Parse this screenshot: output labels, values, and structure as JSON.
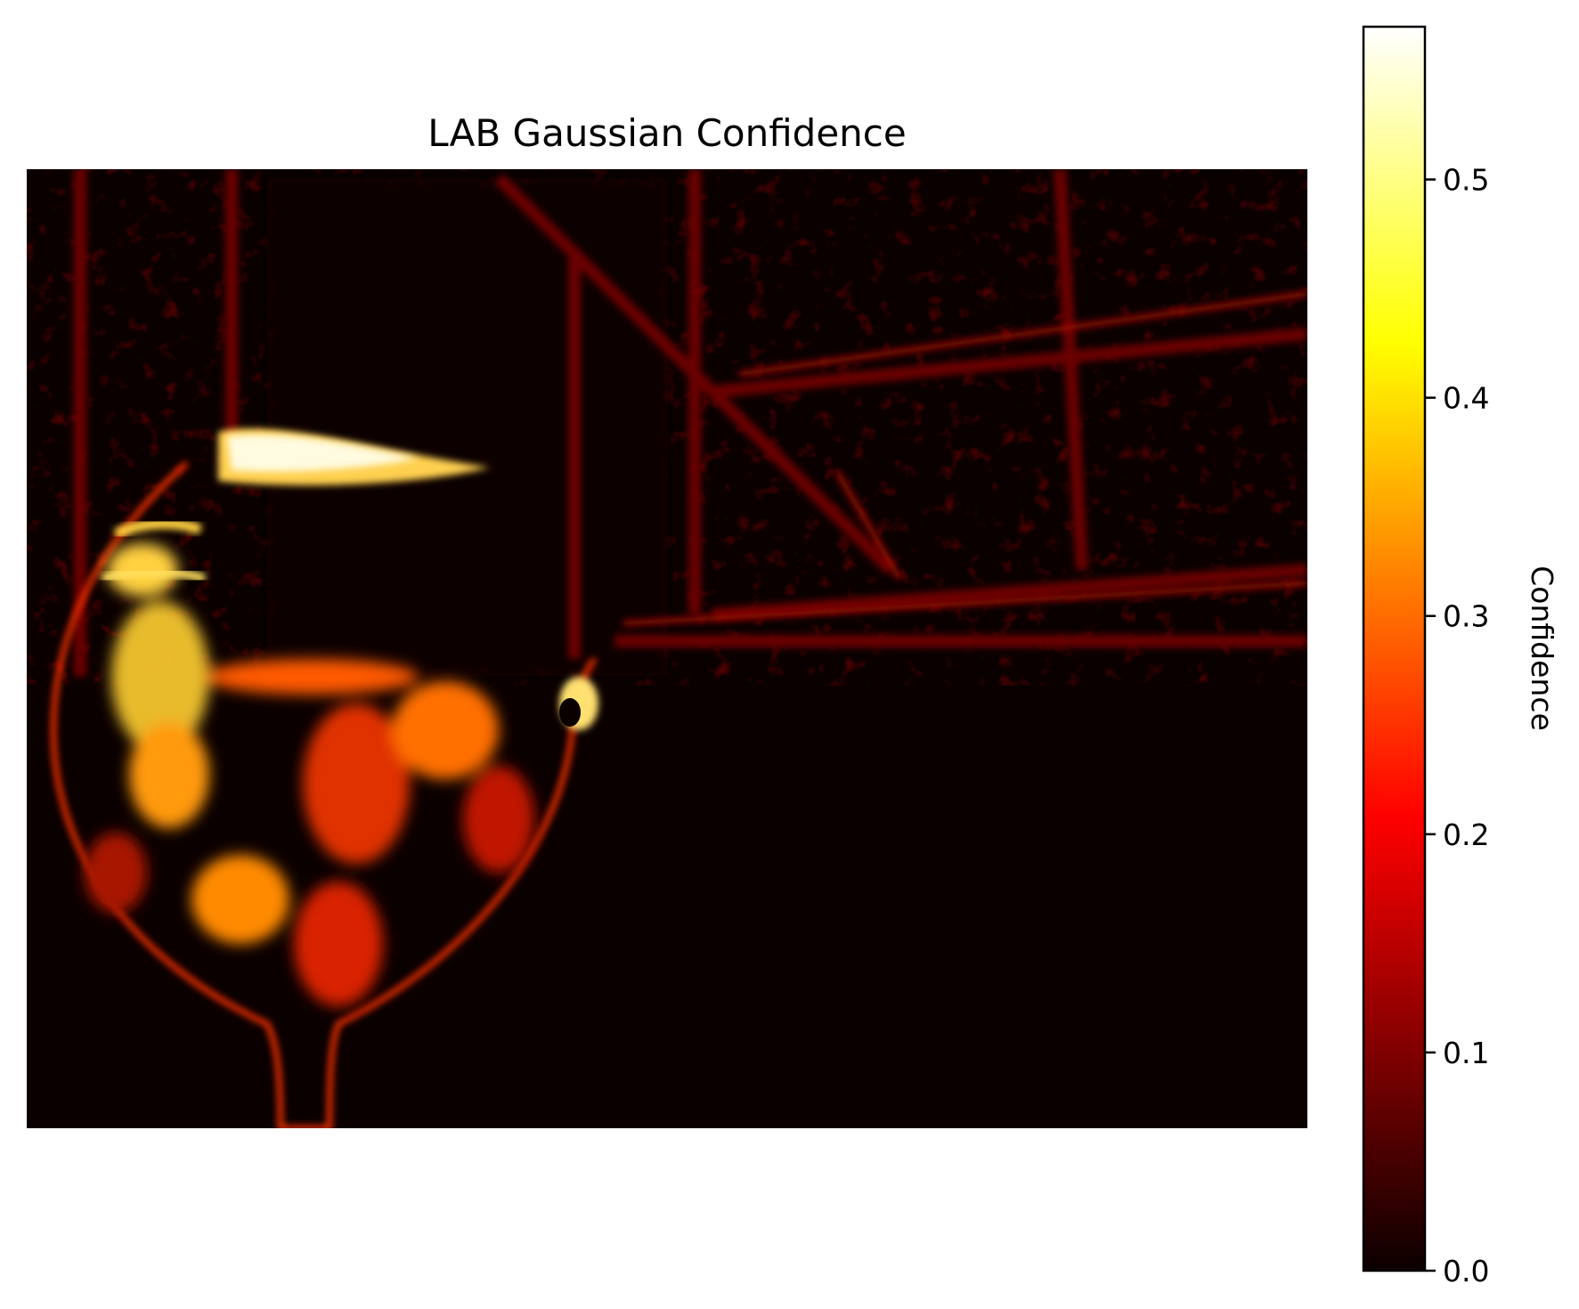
{
  "chart_data": {
    "type": "heatmap",
    "title": "LAB Gaussian Confidence",
    "colormap": "hot",
    "axes_visible": false,
    "colorbar": {
      "label": "Confidence",
      "range": [
        0.0,
        0.57
      ],
      "ticks": [
        0.0,
        0.1,
        0.2,
        0.3,
        0.4,
        0.5
      ],
      "tick_labels": [
        "0.0",
        "0.1",
        "0.2",
        "0.3",
        "0.4",
        "0.5"
      ],
      "placement": "right"
    }
  }
}
